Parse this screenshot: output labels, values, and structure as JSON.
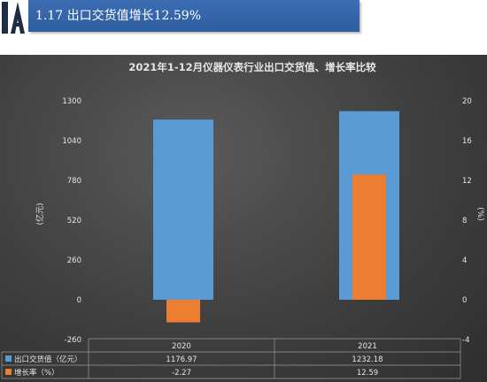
{
  "header": {
    "title": "1.17 出口交货值增长12.59%"
  },
  "colors": {
    "accent": "#2f5e9f",
    "bar_value": "#5b9bd5",
    "bar_growth": "#ed7d31",
    "panel": "#404040"
  },
  "chart_data": {
    "type": "bar",
    "title": "2021年1-12月仪器仪表行业出口交货值、增长率比较",
    "categories": [
      "2020",
      "2021"
    ],
    "ylabel": "(亿元)",
    "y2label": "(%)",
    "ylim": [
      -260,
      1300
    ],
    "y2lim": [
      -4,
      20
    ],
    "yticks": [
      "1300",
      "1040",
      "780",
      "520",
      "260",
      "0",
      "-260"
    ],
    "y2ticks": [
      "20",
      "16",
      "12",
      "8",
      "4",
      "0",
      "-4"
    ],
    "grid": false,
    "legend": "table-bottom",
    "series": [
      {
        "name": "出口交货值（亿元）",
        "axis": "left",
        "values": [
          1176.97,
          1232.18
        ],
        "labels": [
          "1176.97",
          "1232.18"
        ],
        "color": "#5b9bd5"
      },
      {
        "name": "增长率（%）",
        "axis": "right",
        "values": [
          -2.27,
          12.59
        ],
        "labels": [
          "-2.27",
          "12.59"
        ],
        "color": "#ed7d31"
      }
    ]
  }
}
